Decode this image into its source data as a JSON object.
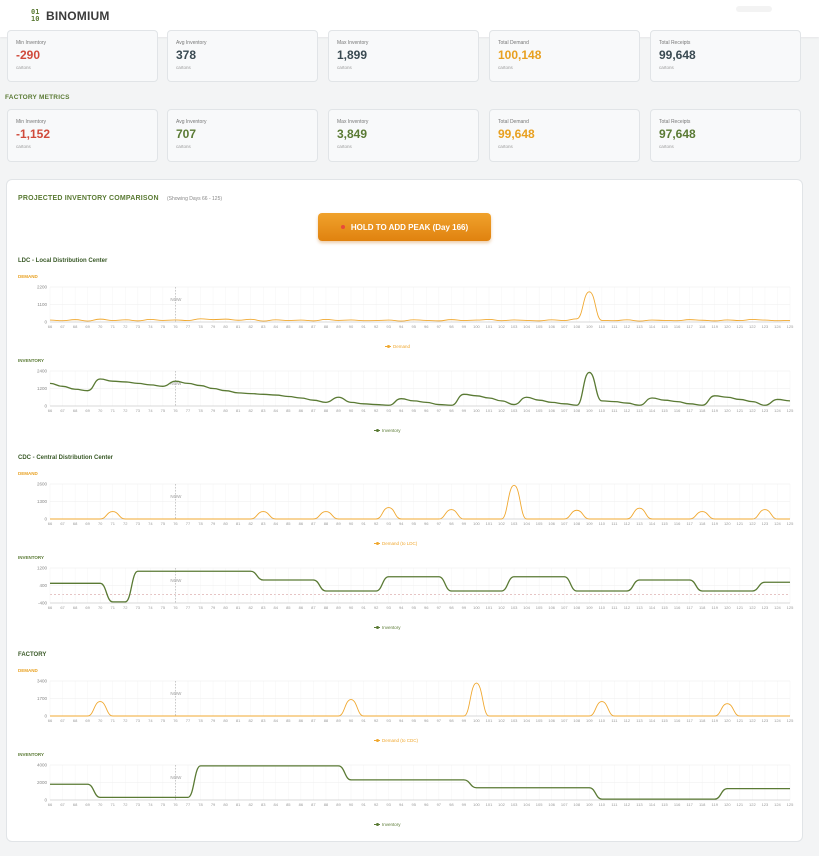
{
  "app": {
    "logo_mark_top": "01",
    "logo_mark_bottom": "10",
    "name": "BINOMIUM"
  },
  "ldc_metrics": [
    {
      "label": "Min Inventory",
      "value": "-290",
      "unit": "cartons",
      "tone": "neg"
    },
    {
      "label": "Avg Inventory",
      "value": "378",
      "unit": "cartons",
      "tone": "dark"
    },
    {
      "label": "Max Inventory",
      "value": "1,899",
      "unit": "cartons",
      "tone": "dark"
    },
    {
      "label": "Total Demand",
      "value": "100,148",
      "unit": "cartons",
      "tone": "orange"
    },
    {
      "label": "Total Receipts",
      "value": "99,648",
      "unit": "cartons",
      "tone": "dark"
    }
  ],
  "factory_metrics_title": "FACTORY METRICS",
  "factory_metrics": [
    {
      "label": "Min Inventory",
      "value": "-1,152",
      "unit": "cartons",
      "tone": "neg"
    },
    {
      "label": "Avg Inventory",
      "value": "707",
      "unit": "cartons",
      "tone": "green"
    },
    {
      "label": "Max Inventory",
      "value": "3,849",
      "unit": "cartons",
      "tone": "green"
    },
    {
      "label": "Total Demand",
      "value": "99,648",
      "unit": "cartons",
      "tone": "orange"
    },
    {
      "label": "Total Receipts",
      "value": "97,648",
      "unit": "cartons",
      "tone": "green"
    }
  ],
  "comparison": {
    "title": "PROJECTED INVENTORY COMPARISON",
    "subtitle": "(Showing Days 66 - 125)",
    "peak_button": "HOLD TO ADD PEAK (Day 166)",
    "now_label": "NOW",
    "demand_label": "DEMAND",
    "inventory_label": "INVENTORY"
  },
  "colors": {
    "demand": "#f0a830",
    "inventory": "#5a7a34",
    "accent": "#e8921a"
  },
  "chart_data": [
    {
      "type": "line",
      "node": "LDC - Local Distribution Center",
      "metric": "demand",
      "legend": "Demand",
      "now_day": 76,
      "x_range": [
        66,
        125
      ],
      "y_ticks": [
        "2200",
        "1100",
        "0"
      ],
      "ylim": [
        0,
        2200
      ],
      "x": [
        66,
        67,
        68,
        69,
        70,
        71,
        72,
        73,
        74,
        75,
        76,
        77,
        78,
        79,
        80,
        81,
        82,
        83,
        84,
        85,
        86,
        87,
        88,
        89,
        90,
        91,
        92,
        93,
        94,
        95,
        96,
        97,
        98,
        99,
        100,
        101,
        102,
        103,
        104,
        105,
        106,
        107,
        108,
        109,
        110,
        111,
        112,
        113,
        114,
        115,
        116,
        117,
        118,
        119,
        120,
        121,
        122,
        123,
        124,
        125
      ],
      "values": [
        120,
        80,
        150,
        60,
        180,
        90,
        140,
        70,
        160,
        100,
        130,
        90,
        200,
        150,
        180,
        110,
        170,
        60,
        140,
        90,
        120,
        70,
        160,
        100,
        130,
        80,
        90,
        120,
        60,
        140,
        100,
        70,
        150,
        90,
        120,
        160,
        80,
        130,
        100,
        70,
        140,
        90,
        200,
        1900,
        100,
        80,
        140,
        60,
        120,
        100,
        80,
        150,
        110,
        70,
        130,
        90,
        160,
        120,
        80,
        100
      ]
    },
    {
      "type": "line",
      "node": "LDC - Local Distribution Center",
      "metric": "inventory",
      "legend": "Inventory",
      "now_day": 76,
      "x_range": [
        66,
        125
      ],
      "y_ticks": [
        "2400",
        "1200",
        "0"
      ],
      "ylim": [
        0,
        2400
      ],
      "x": [
        66,
        67,
        68,
        69,
        70,
        71,
        72,
        73,
        74,
        75,
        76,
        77,
        78,
        79,
        80,
        81,
        82,
        83,
        84,
        85,
        86,
        87,
        88,
        89,
        90,
        91,
        92,
        93,
        94,
        95,
        96,
        97,
        98,
        99,
        100,
        101,
        102,
        103,
        104,
        105,
        106,
        107,
        108,
        109,
        110,
        111,
        112,
        113,
        114,
        115,
        116,
        117,
        118,
        119,
        120,
        121,
        122,
        123,
        124,
        125
      ],
      "values": [
        1550,
        1350,
        1150,
        1050,
        1850,
        1700,
        1650,
        1550,
        1450,
        1350,
        1700,
        1550,
        1400,
        1200,
        1050,
        900,
        850,
        800,
        750,
        650,
        550,
        400,
        250,
        600,
        250,
        150,
        100,
        50,
        500,
        350,
        250,
        100,
        50,
        800,
        700,
        550,
        350,
        100,
        600,
        400,
        250,
        150,
        50,
        2300,
        350,
        300,
        200,
        50,
        550,
        400,
        300,
        150,
        50,
        700,
        600,
        450,
        300,
        50,
        450,
        350
      ]
    },
    {
      "type": "line",
      "node": "CDC - Central Distribution Center",
      "metric": "demand",
      "legend": "Demand (to LDC)",
      "now_day": 76,
      "x_range": [
        66,
        125
      ],
      "y_ticks": [
        "2600",
        "1300",
        "0"
      ],
      "ylim": [
        0,
        2600
      ],
      "x": [
        66,
        67,
        68,
        69,
        70,
        71,
        72,
        73,
        74,
        75,
        76,
        77,
        78,
        79,
        80,
        81,
        82,
        83,
        84,
        85,
        86,
        87,
        88,
        89,
        90,
        91,
        92,
        93,
        94,
        95,
        96,
        97,
        98,
        99,
        100,
        101,
        102,
        103,
        104,
        105,
        106,
        107,
        108,
        109,
        110,
        111,
        112,
        113,
        114,
        115,
        116,
        117,
        118,
        119,
        120,
        121,
        122,
        123,
        124,
        125
      ],
      "values": [
        0,
        0,
        0,
        0,
        0,
        550,
        0,
        0,
        0,
        0,
        0,
        0,
        0,
        0,
        0,
        0,
        0,
        550,
        0,
        0,
        0,
        0,
        550,
        0,
        0,
        0,
        0,
        850,
        0,
        0,
        0,
        0,
        700,
        0,
        0,
        0,
        0,
        2500,
        0,
        0,
        0,
        0,
        650,
        0,
        0,
        0,
        0,
        800,
        0,
        0,
        0,
        0,
        550,
        0,
        0,
        0,
        0,
        700,
        0,
        0
      ]
    },
    {
      "type": "line",
      "node": "CDC - Central Distribution Center",
      "metric": "inventory",
      "legend": "Inventory",
      "now_day": 76,
      "x_range": [
        66,
        125
      ],
      "y_ticks": [
        "1200",
        "400",
        "-400"
      ],
      "ylim": [
        -400,
        1200
      ],
      "x": [
        66,
        67,
        68,
        69,
        70,
        71,
        72,
        73,
        74,
        75,
        76,
        77,
        78,
        79,
        80,
        81,
        82,
        83,
        84,
        85,
        86,
        87,
        88,
        89,
        90,
        91,
        92,
        93,
        94,
        95,
        96,
        97,
        98,
        99,
        100,
        101,
        102,
        103,
        104,
        105,
        106,
        107,
        108,
        109,
        110,
        111,
        112,
        113,
        114,
        115,
        116,
        117,
        118,
        119,
        120,
        121,
        122,
        123,
        124,
        125
      ],
      "values": [
        500,
        500,
        500,
        500,
        500,
        -350,
        -350,
        1050,
        1050,
        1050,
        1050,
        1050,
        1050,
        1050,
        1050,
        1050,
        1050,
        650,
        650,
        650,
        650,
        650,
        150,
        150,
        150,
        150,
        150,
        800,
        800,
        800,
        800,
        800,
        150,
        150,
        150,
        150,
        150,
        800,
        800,
        800,
        800,
        800,
        150,
        150,
        150,
        150,
        150,
        650,
        650,
        650,
        650,
        650,
        150,
        150,
        150,
        150,
        150,
        550,
        550,
        550
      ]
    },
    {
      "type": "line",
      "node": "FACTORY",
      "metric": "demand",
      "legend": "Demand (to CDC)",
      "now_day": 76,
      "x_range": [
        66,
        125
      ],
      "y_ticks": [
        "3400",
        "1700",
        "0"
      ],
      "ylim": [
        0,
        3400
      ],
      "x": [
        66,
        67,
        68,
        69,
        70,
        71,
        72,
        73,
        74,
        75,
        76,
        77,
        78,
        79,
        80,
        81,
        82,
        83,
        84,
        85,
        86,
        87,
        88,
        89,
        90,
        91,
        92,
        93,
        94,
        95,
        96,
        97,
        98,
        99,
        100,
        101,
        102,
        103,
        104,
        105,
        106,
        107,
        108,
        109,
        110,
        111,
        112,
        113,
        114,
        115,
        116,
        117,
        118,
        119,
        120,
        121,
        122,
        123,
        124,
        125
      ],
      "values": [
        0,
        0,
        0,
        0,
        1400,
        0,
        0,
        0,
        0,
        0,
        0,
        0,
        0,
        0,
        0,
        0,
        0,
        0,
        0,
        0,
        0,
        0,
        0,
        0,
        1600,
        0,
        0,
        0,
        0,
        0,
        0,
        0,
        0,
        0,
        3200,
        0,
        0,
        0,
        0,
        0,
        0,
        0,
        0,
        0,
        1400,
        0,
        0,
        0,
        0,
        0,
        0,
        0,
        0,
        0,
        1200,
        0,
        0,
        0,
        0,
        0
      ]
    },
    {
      "type": "line",
      "node": "FACTORY",
      "metric": "inventory",
      "legend": "Inventory",
      "now_day": 76,
      "x_range": [
        66,
        125
      ],
      "y_ticks": [
        "4000",
        "2000",
        "0"
      ],
      "ylim": [
        0,
        4000
      ],
      "x": [
        66,
        67,
        68,
        69,
        70,
        71,
        72,
        73,
        74,
        75,
        76,
        77,
        78,
        79,
        80,
        81,
        82,
        83,
        84,
        85,
        86,
        87,
        88,
        89,
        90,
        91,
        92,
        93,
        94,
        95,
        96,
        97,
        98,
        99,
        100,
        101,
        102,
        103,
        104,
        105,
        106,
        107,
        108,
        109,
        110,
        111,
        112,
        113,
        114,
        115,
        116,
        117,
        118,
        119,
        120,
        121,
        122,
        123,
        124,
        125
      ],
      "values": [
        1800,
        1800,
        1800,
        1800,
        300,
        300,
        300,
        300,
        300,
        300,
        300,
        300,
        3900,
        3900,
        3900,
        3900,
        3900,
        3900,
        3900,
        3900,
        3900,
        3900,
        3900,
        3900,
        2300,
        2300,
        2300,
        2300,
        2300,
        2300,
        2300,
        2300,
        2300,
        2300,
        1400,
        1400,
        1400,
        1400,
        1400,
        1400,
        1400,
        1400,
        1400,
        1400,
        100,
        100,
        100,
        100,
        100,
        100,
        100,
        100,
        100,
        100,
        1300,
        1300,
        1300,
        1300,
        1300,
        1300
      ]
    }
  ]
}
